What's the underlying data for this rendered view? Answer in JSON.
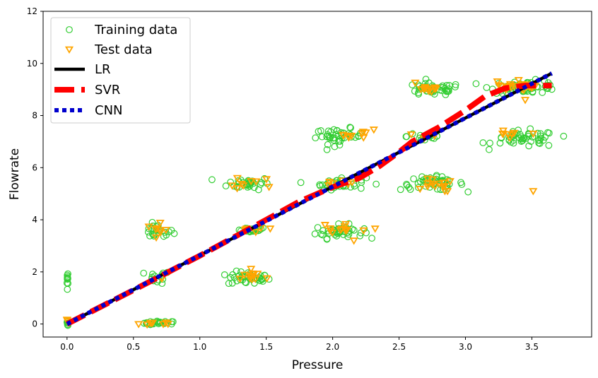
{
  "chart_data": {
    "type": "scatter",
    "xlabel": "Pressure",
    "ylabel": "Flowrate",
    "xlim": [
      -0.18,
      3.95
    ],
    "ylim": [
      -0.5,
      12
    ],
    "xticks": [
      0.0,
      0.5,
      1.0,
      1.5,
      2.0,
      2.5,
      3.0,
      3.5
    ],
    "xtick_labels": [
      "0.0",
      "0.5",
      "1.0",
      "1.5",
      "2.0",
      "2.5",
      "3.0",
      "3.5"
    ],
    "yticks": [
      0,
      2,
      4,
      6,
      8,
      10,
      12
    ],
    "ytick_labels": [
      "0",
      "2",
      "4",
      "6",
      "8",
      "10",
      "12"
    ],
    "grid": false,
    "legend_position": "top-left",
    "series": [
      {
        "name": "Training data",
        "kind": "scatter",
        "marker": "circle-open",
        "color": "#32cd32",
        "clusters": [
          {
            "x": 0.0,
            "y": 1.7,
            "sx": 0.01,
            "sy": 0.18,
            "n": 10
          },
          {
            "x": 0.0,
            "y": 0.05,
            "sx": 0.01,
            "sy": 0.04,
            "n": 6
          },
          {
            "x": 0.7,
            "y": 0.03,
            "sx": 0.06,
            "sy": 0.04,
            "n": 24
          },
          {
            "x": 0.68,
            "y": 1.8,
            "sx": 0.05,
            "sy": 0.12,
            "n": 14
          },
          {
            "x": 0.68,
            "y": 3.55,
            "sx": 0.06,
            "sy": 0.14,
            "n": 22
          },
          {
            "x": 1.37,
            "y": 1.75,
            "sx": 0.08,
            "sy": 0.13,
            "n": 40
          },
          {
            "x": 1.37,
            "y": 3.62,
            "sx": 0.07,
            "sy": 0.05,
            "n": 22
          },
          {
            "x": 1.37,
            "y": 5.4,
            "sx": 0.08,
            "sy": 0.12,
            "n": 32
          },
          {
            "x": 2.05,
            "y": 3.55,
            "sx": 0.09,
            "sy": 0.13,
            "n": 42
          },
          {
            "x": 2.05,
            "y": 5.4,
            "sx": 0.1,
            "sy": 0.12,
            "n": 34
          },
          {
            "x": 2.05,
            "y": 7.2,
            "sx": 0.09,
            "sy": 0.15,
            "n": 40
          },
          {
            "x": 2.75,
            "y": 5.4,
            "sx": 0.12,
            "sy": 0.13,
            "n": 46
          },
          {
            "x": 2.7,
            "y": 7.2,
            "sx": 0.07,
            "sy": 0.12,
            "n": 20
          },
          {
            "x": 2.75,
            "y": 9.0,
            "sx": 0.11,
            "sy": 0.12,
            "n": 46
          },
          {
            "x": 3.45,
            "y": 7.1,
            "sx": 0.12,
            "sy": 0.16,
            "n": 50
          },
          {
            "x": 3.45,
            "y": 9.1,
            "sx": 0.13,
            "sy": 0.12,
            "n": 58
          }
        ]
      },
      {
        "name": "Test data",
        "kind": "scatter",
        "marker": "triangle-down-open",
        "color": "#ffa500",
        "clusters": [
          {
            "x": 0.0,
            "y": 0.1,
            "sx": 0.01,
            "sy": 0.04,
            "n": 3
          },
          {
            "x": 0.7,
            "y": 0.02,
            "sx": 0.04,
            "sy": 0.03,
            "n": 8
          },
          {
            "x": 0.7,
            "y": 3.6,
            "sx": 0.05,
            "sy": 0.12,
            "n": 8
          },
          {
            "x": 0.68,
            "y": 1.8,
            "sx": 0.03,
            "sy": 0.05,
            "n": 2
          },
          {
            "x": 1.37,
            "y": 1.8,
            "sx": 0.06,
            "sy": 0.1,
            "n": 12
          },
          {
            "x": 1.37,
            "y": 3.6,
            "sx": 0.06,
            "sy": 0.1,
            "n": 5
          },
          {
            "x": 1.4,
            "y": 5.4,
            "sx": 0.07,
            "sy": 0.12,
            "n": 9
          },
          {
            "x": 2.05,
            "y": 3.6,
            "sx": 0.09,
            "sy": 0.1,
            "n": 12
          },
          {
            "x": 2.05,
            "y": 5.4,
            "sx": 0.07,
            "sy": 0.08,
            "n": 6
          },
          {
            "x": 2.1,
            "y": 7.2,
            "sx": 0.08,
            "sy": 0.12,
            "n": 8
          },
          {
            "x": 2.75,
            "y": 5.35,
            "sx": 0.1,
            "sy": 0.12,
            "n": 14
          },
          {
            "x": 2.7,
            "y": 7.25,
            "sx": 0.06,
            "sy": 0.08,
            "n": 4
          },
          {
            "x": 2.7,
            "y": 9.05,
            "sx": 0.08,
            "sy": 0.12,
            "n": 14
          },
          {
            "x": 3.35,
            "y": 7.25,
            "sx": 0.12,
            "sy": 0.1,
            "n": 8
          },
          {
            "x": 3.4,
            "y": 9.15,
            "sx": 0.1,
            "sy": 0.1,
            "n": 22
          }
        ],
        "extra_points": [
          [
            2.31,
            7.46
          ],
          [
            2.32,
            3.66
          ],
          [
            2.16,
            3.2
          ],
          [
            1.53,
            3.66
          ],
          [
            3.51,
            5.1
          ],
          [
            3.45,
            8.6
          ],
          [
            2.25,
            7.35
          ]
        ]
      },
      {
        "name": "LR",
        "kind": "line",
        "color": "#000000",
        "x": [
          0.0,
          3.65
        ],
        "y": [
          0.0,
          9.62
        ]
      },
      {
        "name": "SVR",
        "kind": "line",
        "color": "#ff0000",
        "x": [
          0.0,
          0.5,
          1.0,
          1.5,
          1.75,
          2.0,
          2.2,
          2.35,
          2.5,
          2.6,
          2.8,
          3.0,
          3.15,
          3.3,
          3.45,
          3.6,
          3.65
        ],
        "y": [
          0.0,
          1.3,
          2.62,
          4.0,
          4.7,
          5.25,
          5.6,
          6.05,
          6.6,
          7.0,
          7.55,
          8.2,
          8.75,
          9.05,
          9.15,
          9.15,
          9.15
        ]
      },
      {
        "name": "CNN",
        "kind": "line",
        "color": "#0000cd",
        "x": [
          0.0,
          3.65
        ],
        "y": [
          0.0,
          9.62
        ]
      }
    ]
  }
}
